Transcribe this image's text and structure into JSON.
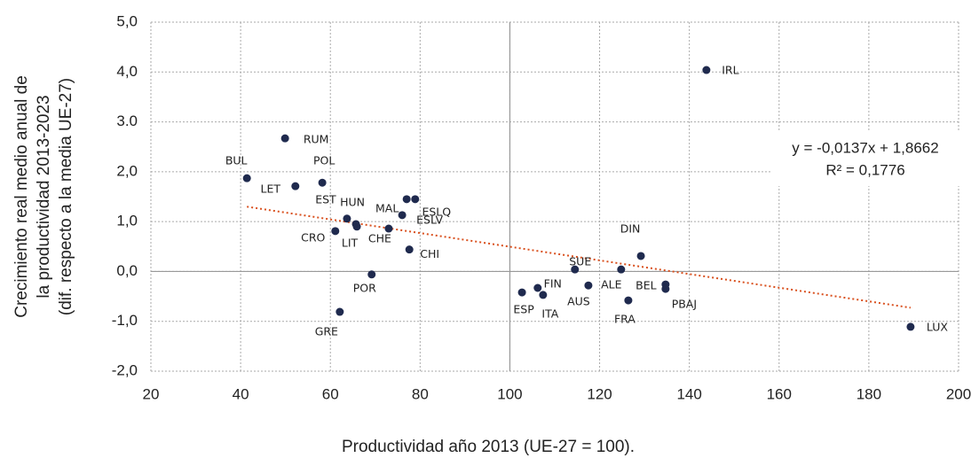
{
  "chart_data": {
    "type": "scatter",
    "xlabel": "Productividad año 2013 (UE-27 = 100).",
    "ylabel": [
      "Crecimiento real medio anual de",
      "la productividad 2013-2023",
      "(dif. respecto a la media UE-27)"
    ],
    "labels": [
      "BUL",
      "RUM",
      "POL",
      "LET",
      "EST",
      "HUN",
      "MAL",
      "ESLQ",
      "CRO",
      "LIT",
      "CHE",
      "ESLV",
      "CHI",
      "POR",
      "GRE",
      "ESP",
      "FIN",
      "ITA",
      "SUE",
      "AUS",
      "ALE",
      "FRA",
      "DIN",
      "BEL",
      "PBAJ",
      "IRL",
      "LUX"
    ],
    "x": [
      41.4,
      49.9,
      58.2,
      52.2,
      63.7,
      65.7,
      77.0,
      78.9,
      61.1,
      65.9,
      73.0,
      76.0,
      77.6,
      69.2,
      62.1,
      102.7,
      106.2,
      107.4,
      114.5,
      117.5,
      124.8,
      126.4,
      129.2,
      134.7,
      134.7,
      143.8,
      189.3
    ],
    "values": [
      1.87,
      2.67,
      1.78,
      1.71,
      1.06,
      0.95,
      1.45,
      1.45,
      0.81,
      0.9,
      0.86,
      1.13,
      0.44,
      -0.06,
      -0.81,
      -0.42,
      -0.33,
      -0.47,
      0.04,
      -0.28,
      0.04,
      -0.58,
      0.31,
      -0.26,
      -0.35,
      4.04,
      -1.11
    ],
    "color": "#1f2a4e",
    "trendline": {
      "slope": -0.0137,
      "intercept": 1.8662,
      "color": "#d9501e",
      "label": "y = -0,0137x + 1,8662",
      "r2_label": "R² = 0,1776"
    },
    "xlim": [
      20,
      200
    ],
    "xticks": [
      20,
      40,
      60,
      80,
      100,
      120,
      140,
      160,
      180,
      200
    ],
    "ylim": [
      -2,
      5
    ],
    "yticks": [
      {
        "value": -2,
        "label": "-2,0"
      },
      {
        "value": -1,
        "label": "-1,0"
      },
      {
        "value": 0,
        "label": "0,0"
      },
      {
        "value": 1,
        "label": "1,0"
      },
      {
        "value": 2,
        "label": "2,0"
      },
      {
        "value": 3,
        "label": "3.0"
      },
      {
        "value": 4,
        "label": "4,0"
      },
      {
        "value": 5,
        "label": "5,0"
      }
    ],
    "grid": true
  }
}
